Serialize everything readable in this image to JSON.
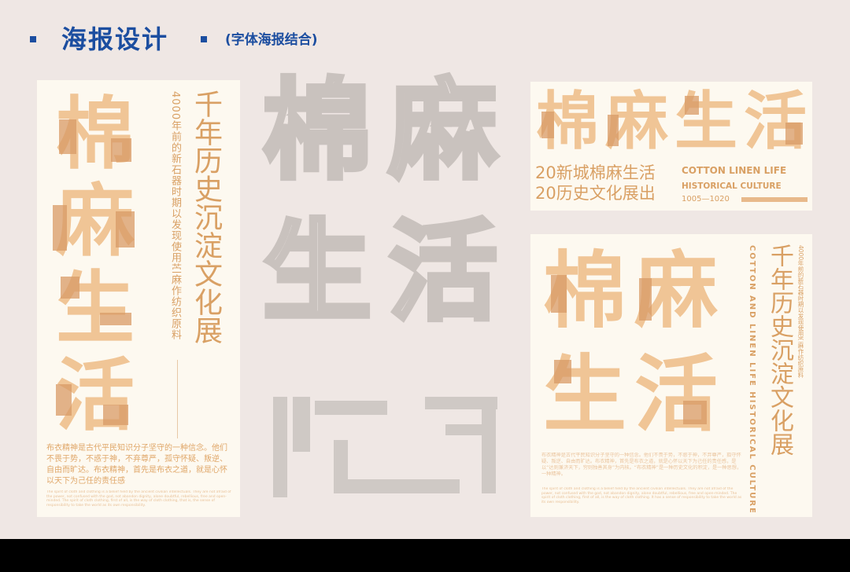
{
  "header": {
    "title": "海报设计",
    "subtitle": "(字体海报结合)"
  },
  "colors": {
    "accent_blue": "#1c4ea0",
    "background": "#efe7e4",
    "poster_bg": "#fdf9f0",
    "light_orange": "#f0c596",
    "dark_orange": "#d89a66",
    "text_orange": "#d9a064",
    "ghost_grey": "#c9c2be",
    "bottom_bar": "#000000"
  },
  "title_chars": [
    "棉",
    "麻",
    "生",
    "活"
  ],
  "poster1": {
    "vertical_small": "4000年前的新石器时期以发现使用苎麻作纺织原料",
    "vertical_big": "千年历史沉淀文化展",
    "paragraph": "布衣精神是古代平民知识分子坚守的一种信念。他们不畏于势，不惑于神，不弃尊严，孤守怀疑、叛逆、自由而旷达。布衣精神，首先是布衣之道，就是心怀以天下为己任的责任感",
    "fine_print": "The spirit of cloth and clothing is a belief held by the ancient civilian intellectuals. They are not afraid of the power, not confused with the god, not abandon dignity, alone doubtful, rebellious, free and open-minded. The spirit of cloth clothing, first of all, is the way of cloth clothing, that is, the sense of responsibility to take the world as its own responsibility."
  },
  "poster2": {
    "line1": "20新城棉麻生活",
    "line2": "20历史文化展出",
    "en_title": "COTTON LINEN LIFE",
    "en_sub": "HISTORICAL CULTURE",
    "years": "1005—1020"
  },
  "poster3": {
    "vertical_small": "4000年前的新石器时期以发现使用苎麻作纺织原料",
    "vertical_en": "COTTON AND LINEN LIFE HISTORICAL CULTURE",
    "vertical_big": "千年历史沉淀文化展",
    "paragraph": "布衣精神是古代平民知识分子坚守的一种信念。他们不畏于势，不惑于神，不弃尊严，孤守怀疑、叛逆、自由而旷达。布衣精神，首先是布衣之道，就是心怀以天下为己任的责任感，是以“达则兼济天下，穷则独善其身”为内核。“布衣精神”是一种历史文化的积淀，是一种思想，一种精神。",
    "fine_print": "The spirit of cloth and clothing is a belief held by the ancient civilian intellectuals. They are not afraid of the power, not confused with the god, not abandon dignity, alone doubtful, rebellious, free and open-minded. The spirit of cloth clothing, first of all, is the way of cloth clothing. It has a sense of responsibility to take the world as its own responsibility."
  }
}
